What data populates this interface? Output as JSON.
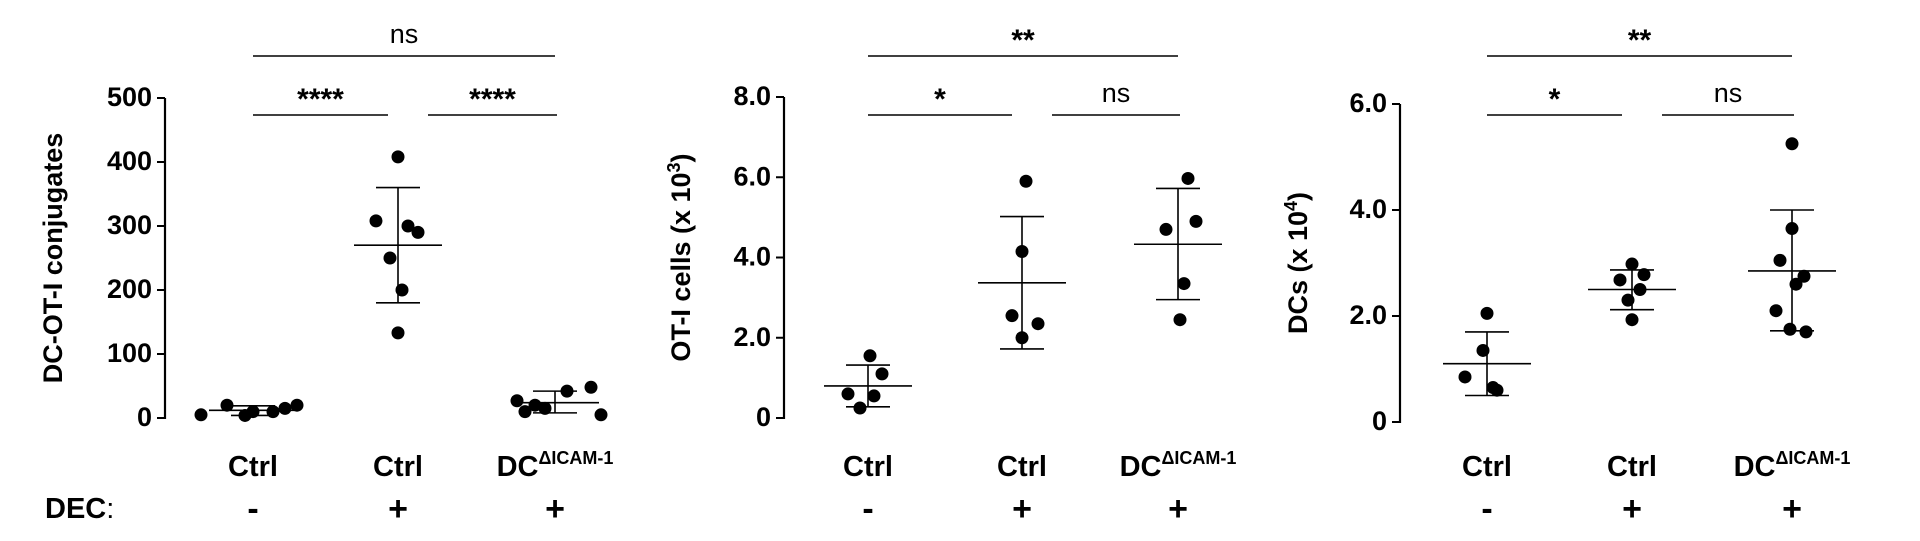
{
  "dec_row": {
    "label": "DEC",
    "colon": ":"
  },
  "chart_data": [
    {
      "type": "scatter",
      "ylabel": "DC-OT-I conjugates",
      "ylabel_sup": "",
      "ylabel_suffix": "",
      "ylim": [
        0,
        500
      ],
      "yticks": [
        0,
        100,
        200,
        300,
        400,
        500
      ],
      "ytick_labels": [
        "0",
        "100",
        "200",
        "300",
        "400",
        "500"
      ],
      "categories": [
        {
          "label": "Ctrl",
          "sup": "",
          "dec": "-"
        },
        {
          "label": "Ctrl",
          "sup": "",
          "dec": "+"
        },
        {
          "label": "DC",
          "sup": "ΔICAM-1",
          "dec": "+"
        }
      ],
      "groups": [
        {
          "points": [
            5,
            20,
            10,
            10,
            20,
            4,
            15
          ],
          "mean": 12,
          "sd_low": 4,
          "sd_high": 19
        },
        {
          "points": [
            408,
            308,
            300,
            290,
            250,
            200,
            133
          ],
          "mean": 270,
          "sd_low": 180,
          "sd_high": 360
        },
        {
          "points": [
            27,
            15,
            42,
            48,
            20,
            5,
            10
          ],
          "mean": 24,
          "sd_low": 8,
          "sd_high": 42
        }
      ],
      "significance": [
        {
          "from": 0,
          "to": 1,
          "label": "****",
          "level": 2
        },
        {
          "from": 1,
          "to": 2,
          "label": "****",
          "level": 2
        },
        {
          "from": 0,
          "to": 2,
          "label": "ns",
          "level": 1
        }
      ]
    },
    {
      "type": "scatter",
      "ylabel": "OT-I cells (x 10",
      "ylabel_sup": "3",
      "ylabel_suffix": ")",
      "ylim": [
        0,
        8
      ],
      "yticks": [
        0,
        2,
        4,
        6,
        8
      ],
      "ytick_labels": [
        "0",
        "2.0",
        "4.0",
        "6.0",
        "8.0"
      ],
      "categories": [
        {
          "label": "Ctrl",
          "sup": "",
          "dec": "-"
        },
        {
          "label": "Ctrl",
          "sup": "",
          "dec": "+"
        },
        {
          "label": "DC",
          "sup": "ΔICAM-1",
          "dec": "+"
        }
      ],
      "groups": [
        {
          "points": [
            1.55,
            1.1,
            0.6,
            0.55,
            0.25
          ],
          "mean": 0.8,
          "sd_low": 0.28,
          "sd_high": 1.32
        },
        {
          "points": [
            5.9,
            4.15,
            2.55,
            2.35,
            2.0
          ],
          "mean": 3.37,
          "sd_low": 1.72,
          "sd_high": 5.02
        },
        {
          "points": [
            5.97,
            4.9,
            4.7,
            3.35,
            2.45
          ],
          "mean": 4.33,
          "sd_low": 2.95,
          "sd_high": 5.72
        }
      ],
      "significance": [
        {
          "from": 0,
          "to": 1,
          "label": "*",
          "level": 2
        },
        {
          "from": 1,
          "to": 2,
          "label": "ns",
          "level": 2
        },
        {
          "from": 0,
          "to": 2,
          "label": "**",
          "level": 1
        }
      ]
    },
    {
      "type": "scatter",
      "ylabel": "DCs (x 10",
      "ylabel_sup": "4",
      "ylabel_suffix": ")",
      "ylim": [
        0,
        6
      ],
      "yticks": [
        0,
        2,
        4,
        6
      ],
      "ytick_labels": [
        "0",
        "2.0",
        "4.0",
        "6.0"
      ],
      "categories": [
        {
          "label": "Ctrl",
          "sup": "",
          "dec": "-"
        },
        {
          "label": "Ctrl",
          "sup": "",
          "dec": "+"
        },
        {
          "label": "DC",
          "sup": "ΔICAM-1",
          "dec": "+"
        }
      ],
      "groups": [
        {
          "points": [
            2.05,
            1.35,
            0.85,
            0.65,
            0.6
          ],
          "mean": 1.1,
          "sd_low": 0.5,
          "sd_high": 1.7
        },
        {
          "points": [
            2.98,
            2.78,
            2.68,
            2.5,
            2.3,
            1.93
          ],
          "mean": 2.5,
          "sd_low": 2.12,
          "sd_high": 2.87
        },
        {
          "points": [
            5.25,
            3.65,
            3.05,
            2.75,
            2.6,
            2.1,
            1.75,
            1.7
          ],
          "mean": 2.85,
          "sd_low": 1.72,
          "sd_high": 4.0
        }
      ],
      "significance": [
        {
          "from": 0,
          "to": 1,
          "label": "*",
          "level": 2
        },
        {
          "from": 1,
          "to": 2,
          "label": "ns",
          "level": 2
        },
        {
          "from": 0,
          "to": 2,
          "label": "**",
          "level": 1
        }
      ]
    }
  ]
}
